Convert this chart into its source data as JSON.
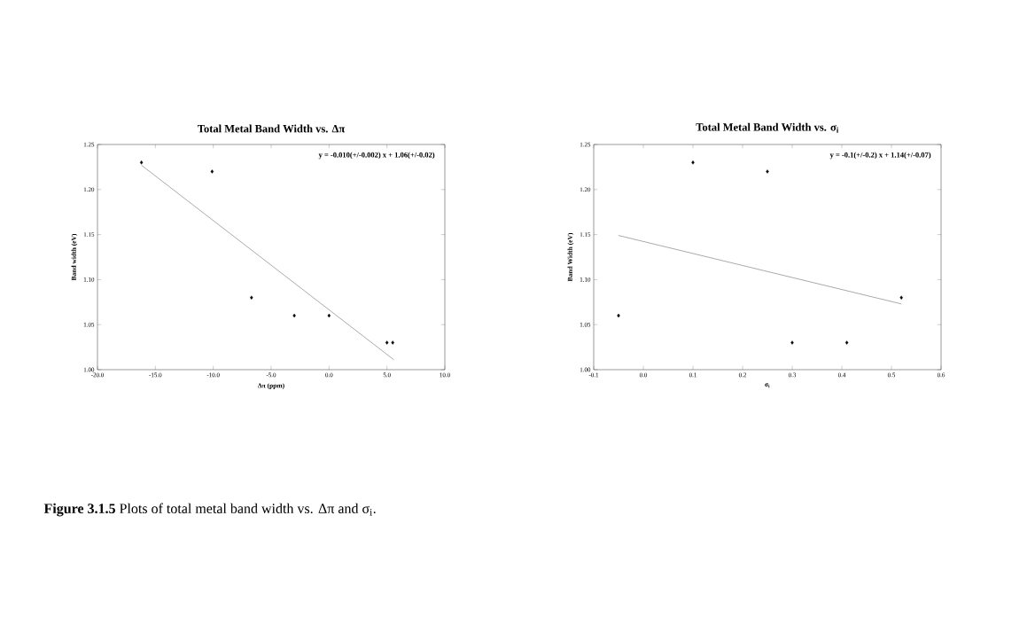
{
  "chart_data": [
    {
      "type": "scatter",
      "title": "Total Metal Band Width vs. Δπ",
      "xlabel": "Δπ (ppm)",
      "ylabel": "Band width (eV)",
      "marker": "diamond",
      "series": [
        {
          "type": "scatter",
          "color": "#000000",
          "x": [
            -16.2,
            -10.1,
            -6.7,
            -3.0,
            0.0,
            5.0,
            5.5
          ],
          "values": [
            1.23,
            1.22,
            1.08,
            1.06,
            1.06,
            1.03,
            1.03
          ]
        },
        {
          "type": "line",
          "marker": "none",
          "color": "#555555",
          "x": [
            -16.2,
            5.6
          ],
          "values": [
            1.227,
            1.011
          ]
        }
      ],
      "xlim": [
        -20,
        10
      ],
      "ylim": [
        1.0,
        1.25
      ],
      "xticks": [
        {
          "value": -20,
          "label": "-20.0"
        },
        {
          "value": -15,
          "label": "-15.0"
        },
        {
          "value": -10,
          "label": "-10.0"
        },
        {
          "value": -5,
          "label": "-5.0"
        },
        {
          "value": 0,
          "label": "0.0"
        },
        {
          "value": 5,
          "label": "5.0"
        },
        {
          "value": 10,
          "label": "10.0"
        }
      ],
      "yticks": [
        {
          "value": 1.0,
          "label": "1.00"
        },
        {
          "value": 1.05,
          "label": "1.05"
        },
        {
          "value": 1.1,
          "label": "1.10"
        },
        {
          "value": 1.15,
          "label": "1.15"
        },
        {
          "value": 1.2,
          "label": "1.20"
        },
        {
          "value": 1.25,
          "label": "1.25"
        }
      ],
      "annotations": [
        "y = -0.010(+/-0.002) x  +  1.06(+/-0.02)"
      ]
    },
    {
      "type": "scatter",
      "title": "Total Metal Band Width vs. σ$_{i}$",
      "xlabel": "σ$_{i}$",
      "ylabel": "Band Width (eV)",
      "marker": "diamond",
      "series": [
        {
          "type": "scatter",
          "color": "#000000",
          "x": [
            -0.05,
            0.1,
            0.25,
            0.3,
            0.41,
            0.52
          ],
          "values": [
            1.06,
            1.23,
            1.22,
            1.03,
            1.03,
            1.08
          ]
        },
        {
          "type": "line",
          "marker": "none",
          "color": "#555555",
          "x": [
            -0.05,
            0.52
          ],
          "values": [
            1.149,
            1.073
          ]
        }
      ],
      "xlim": [
        -0.1,
        0.6
      ],
      "ylim": [
        1.0,
        1.25
      ],
      "xticks": [
        -0.1,
        {
          "value": 0.0,
          "label": "0.0"
        },
        0.1,
        0.2,
        0.3,
        0.4,
        0.5,
        0.6
      ],
      "yticks": [
        {
          "value": 1.0,
          "label": "1.00"
        },
        {
          "value": 1.05,
          "label": "1.05"
        },
        {
          "value": 1.1,
          "label": "1.10"
        },
        {
          "value": 1.15,
          "label": "1.15"
        },
        {
          "value": 1.2,
          "label": "1.20"
        },
        {
          "value": 1.25,
          "label": "1.25"
        }
      ],
      "annotations": [
        "y = -0.1(+/-0.2) x  +  1.14(+/-0.07)",
        "**Figure 3.1.5** Plots of total metal band width vs. Δπ and σ$_{i}$."
      ]
    }
  ]
}
